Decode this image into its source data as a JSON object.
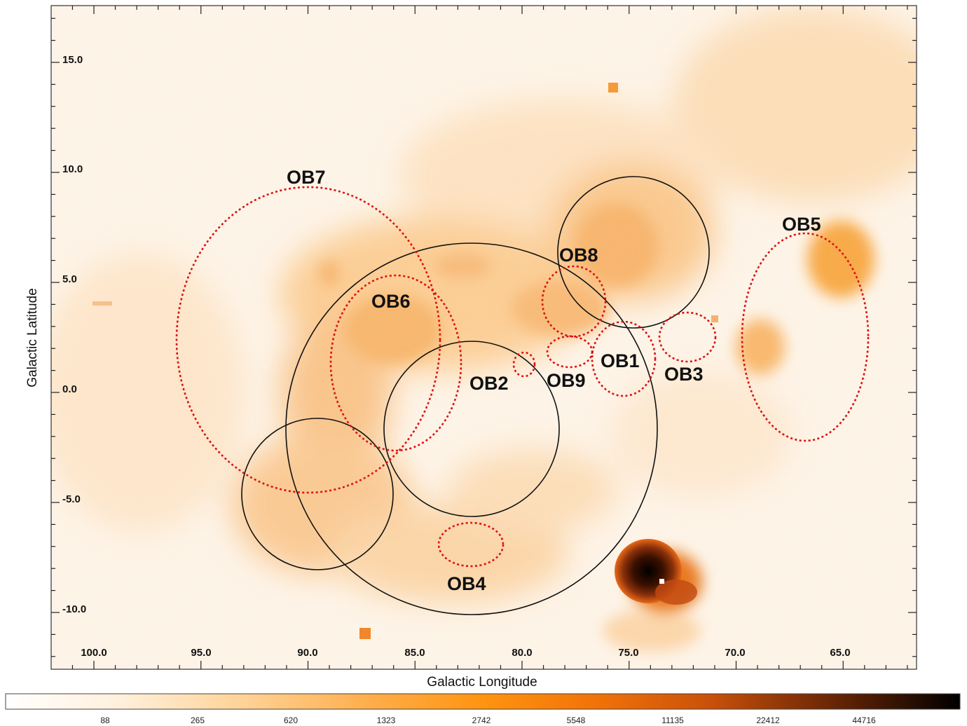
{
  "image": {
    "kind": "sky-map",
    "colormap": [
      "#ffffff",
      "#ffe4c0",
      "#ffbf70",
      "#ff9a1e",
      "#f06a0a",
      "#b8420c",
      "#6b1f05",
      "#000000"
    ]
  },
  "axes": {
    "xlabel": "Galactic Longitude",
    "ylabel": "Galactic Latitude",
    "xticks": [
      "100.0",
      "95.0",
      "90.0",
      "85.0",
      "80.0",
      "75.0",
      "70.0",
      "65.0"
    ],
    "yticks": [
      "15.0",
      "10.0",
      "5.0",
      "0.0",
      "-5.0",
      "-10.0"
    ]
  },
  "regions": [
    {
      "label": "OB7",
      "l": 90.0,
      "b": 1.5,
      "style": "dotted-red"
    },
    {
      "label": "OB6",
      "l": 85.5,
      "b": 1.0,
      "style": "dotted-red"
    },
    {
      "label": "OB8",
      "l": 77.7,
      "b": 3.5,
      "style": "dotted-red"
    },
    {
      "label": "OB9",
      "l": 77.2,
      "b": 1.5,
      "style": "dotted-red"
    },
    {
      "label": "OB1",
      "l": 74.8,
      "b": 1.0,
      "style": "dotted-red"
    },
    {
      "label": "OB3",
      "l": 72.3,
      "b": 2.2,
      "style": "dotted-red"
    },
    {
      "label": "OB5",
      "l": 64.5,
      "b": 2.0,
      "style": "dotted-red"
    },
    {
      "label": "OB2",
      "l": 80.1,
      "b": 0.8,
      "style": "dotted-red"
    },
    {
      "label": "OB4",
      "l": 82.1,
      "b": -8.0,
      "style": "dotted-red"
    }
  ],
  "colorbar": {
    "ticks": [
      "88",
      "265",
      "620",
      "1323",
      "2742",
      "5548",
      "11135",
      "22412",
      "44716"
    ]
  }
}
